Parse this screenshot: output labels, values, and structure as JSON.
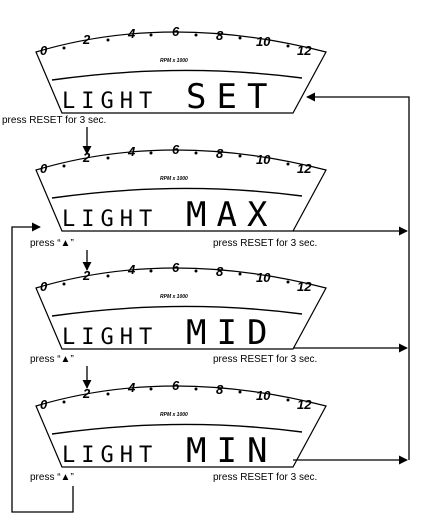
{
  "rpm_scale": {
    "ticks": [
      "0",
      "2",
      "4",
      "6",
      "8",
      "10",
      "12"
    ],
    "label": "RPM x 1000"
  },
  "screens": [
    {
      "mode_label": "LIGHT",
      "mode_value": "SET"
    },
    {
      "mode_label": "LIGHT",
      "mode_value": "MAX"
    },
    {
      "mode_label": "LIGHT",
      "mode_value": "MID"
    },
    {
      "mode_label": "LIGHT",
      "mode_value": "MIN"
    }
  ],
  "captions": {
    "press_reset_first": "press RESET for 3 sec.",
    "press_up": "press “▲”",
    "press_reset": "press RESET for 3 sec."
  }
}
